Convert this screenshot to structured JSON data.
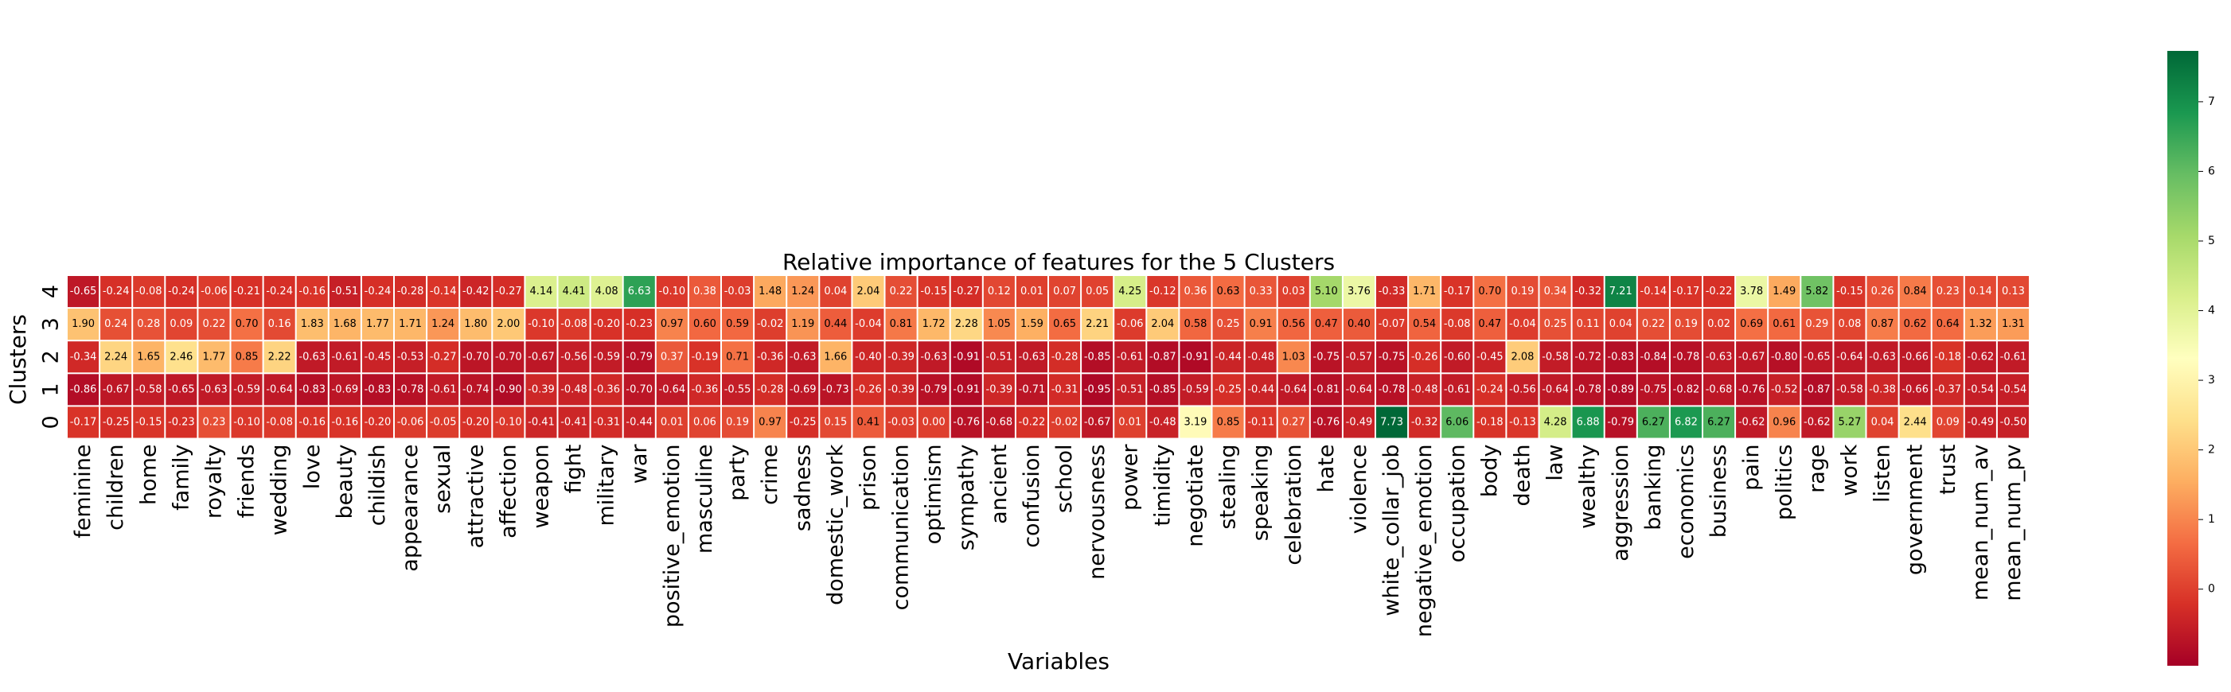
{
  "chart_data": {
    "type": "heatmap",
    "title": "Relative importance of features for the 5 Clusters",
    "xlabel": "Variables",
    "ylabel": "Clusters",
    "colormap": "RdYlGn",
    "vmin": -1.1,
    "vmax": 7.73,
    "colorbar_ticks": [
      "0",
      "1",
      "2",
      "3",
      "4",
      "5",
      "6",
      "7"
    ],
    "variables": [
      "feminine",
      "children",
      "home",
      "family",
      "royalty",
      "friends",
      "wedding",
      "love",
      "beauty",
      "childish",
      "appearance",
      "sexual",
      "attractive",
      "affection",
      "weapon",
      "fight",
      "military",
      "war",
      "positive_emotion",
      "masculine",
      "party",
      "crime",
      "sadness",
      "domestic_work",
      "prison",
      "communication",
      "optimism",
      "sympathy",
      "ancient",
      "confusion",
      "school",
      "nervousness",
      "power",
      "timidity",
      "negotiate",
      "stealing",
      "speaking",
      "celebration",
      "hate",
      "violence",
      "white_collar_job",
      "negative_emotion",
      "occupation",
      "body",
      "death",
      "law",
      "wealthy",
      "aggression",
      "banking",
      "economics",
      "business",
      "pain",
      "politics",
      "rage",
      "work",
      "listen",
      "government",
      "trust",
      "mean_num_av",
      "mean_num_pv"
    ],
    "rows": [
      {
        "cluster": "4",
        "values": [
          "-0.65",
          "-0.24",
          "-0.08",
          "-0.24",
          "-0.06",
          "-0.21",
          "-0.24",
          "-0.16",
          "-0.51",
          "-0.24",
          "-0.28",
          "-0.14",
          "-0.42",
          "-0.27",
          "4.14",
          "4.41",
          "4.08",
          "6.63",
          "-0.10",
          "0.38",
          "-0.03",
          "1.48",
          "1.24",
          "0.04",
          "2.04",
          "0.22",
          "-0.15",
          "-0.27",
          "0.12",
          "0.01",
          "0.07",
          "0.05",
          "4.25",
          "-0.12",
          "0.36",
          "0.63",
          "0.33",
          "0.03",
          "5.10",
          "3.76",
          "-0.33",
          "1.71",
          "-0.17",
          "0.70",
          "0.19",
          "0.34",
          "-0.32",
          "7.21",
          "-0.14",
          "-0.17",
          "-0.22",
          "3.78",
          "1.49",
          "5.82",
          "-0.15",
          "0.26",
          "0.84",
          "0.23",
          "0.14",
          "0.13"
        ]
      },
      {
        "cluster": "3",
        "values": [
          "1.90",
          "0.24",
          "0.28",
          "0.09",
          "0.22",
          "0.70",
          "0.16",
          "1.83",
          "1.68",
          "1.77",
          "1.71",
          "1.24",
          "1.80",
          "2.00",
          "-0.10",
          "-0.08",
          "-0.20",
          "-0.23",
          "0.97",
          "0.60",
          "0.59",
          "-0.02",
          "1.19",
          "0.44",
          "-0.04",
          "0.81",
          "1.72",
          "2.28",
          "1.05",
          "1.59",
          "0.65",
          "2.21",
          "-0.06",
          "2.04",
          "0.58",
          "0.25",
          "0.91",
          "0.56",
          "0.47",
          "0.40",
          "-0.07",
          "0.54",
          "-0.08",
          "0.47",
          "-0.04",
          "0.25",
          "0.11",
          "0.04",
          "0.22",
          "0.19",
          "0.02",
          "0.69",
          "0.61",
          "0.29",
          "0.08",
          "0.87",
          "0.62",
          "0.64",
          "1.32",
          "1.31"
        ]
      },
      {
        "cluster": "2",
        "values": [
          "-0.34",
          "2.24",
          "1.65",
          "2.46",
          "1.77",
          "0.85",
          "2.22",
          "-0.63",
          "-0.61",
          "-0.45",
          "-0.53",
          "-0.27",
          "-0.70",
          "-0.70",
          "-0.67",
          "-0.56",
          "-0.59",
          "-0.79",
          "0.37",
          "-0.19",
          "0.71",
          "-0.36",
          "-0.63",
          "1.66",
          "-0.40",
          "-0.39",
          "-0.63",
          "-0.91",
          "-0.51",
          "-0.63",
          "-0.28",
          "-0.85",
          "-0.61",
          "-0.87",
          "-0.91",
          "-0.44",
          "-0.48",
          "1.03",
          "-0.75",
          "-0.57",
          "-0.75",
          "-0.26",
          "-0.60",
          "-0.45",
          "2.08",
          "-0.58",
          "-0.72",
          "-0.83",
          "-0.84",
          "-0.78",
          "-0.63",
          "-0.67",
          "-0.80",
          "-0.65",
          "-0.64",
          "-0.63",
          "-0.66",
          "-0.18",
          "-0.62",
          "-0.61"
        ]
      },
      {
        "cluster": "1",
        "values": [
          "-0.86",
          "-0.67",
          "-0.58",
          "-0.65",
          "-0.63",
          "-0.59",
          "-0.64",
          "-0.83",
          "-0.69",
          "-0.83",
          "-0.78",
          "-0.61",
          "-0.74",
          "-0.90",
          "-0.39",
          "-0.48",
          "-0.36",
          "-0.70",
          "-0.64",
          "-0.36",
          "-0.55",
          "-0.28",
          "-0.69",
          "-0.73",
          "-0.26",
          "-0.39",
          "-0.79",
          "-0.91",
          "-0.39",
          "-0.71",
          "-0.31",
          "-0.95",
          "-0.51",
          "-0.85",
          "-0.59",
          "-0.25",
          "-0.44",
          "-0.64",
          "-0.81",
          "-0.64",
          "-0.78",
          "-0.48",
          "-0.61",
          "-0.24",
          "-0.56",
          "-0.64",
          "-0.78",
          "-0.89",
          "-0.75",
          "-0.82",
          "-0.68",
          "-0.76",
          "-0.52",
          "-0.87",
          "-0.58",
          "-0.38",
          "-0.66",
          "-0.37",
          "-0.54",
          "-0.54"
        ]
      },
      {
        "cluster": "0",
        "values": [
          "-0.17",
          "-0.25",
          "-0.15",
          "-0.23",
          "0.23",
          "-0.10",
          "-0.08",
          "-0.16",
          "-0.16",
          "-0.20",
          "-0.06",
          "-0.05",
          "-0.20",
          "-0.10",
          "-0.41",
          "-0.41",
          "-0.31",
          "-0.44",
          "0.01",
          "0.06",
          "0.19",
          "0.97",
          "-0.25",
          "0.15",
          "0.41",
          "-0.03",
          "0.00",
          "-0.76",
          "-0.68",
          "-0.22",
          "-0.02",
          "-0.67",
          "0.01",
          "-0.48",
          "3.19",
          "0.85",
          "-0.11",
          "0.27",
          "-0.76",
          "-0.49",
          "7.73",
          "-0.32",
          "6.06",
          "-0.18",
          "-0.13",
          "4.28",
          "6.88",
          "-0.79",
          "6.27",
          "6.82",
          "6.27",
          "-0.62",
          "0.96",
          "-0.62",
          "5.27",
          "0.04",
          "2.44",
          "0.09",
          "-0.49",
          "-0.50"
        ]
      }
    ]
  }
}
